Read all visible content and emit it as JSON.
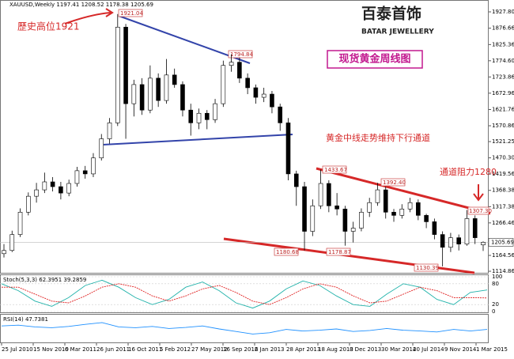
{
  "chart_data": {
    "type": "candlestick",
    "title": "XAUUSD,Weekly",
    "header_values": [
      1197.41,
      1208.52,
      1178.38,
      1205.69
    ],
    "ylim": [
      1110,
      1965
    ],
    "yticks": [
      {
        "value": 1927.8,
        "label": "1927.80"
      },
      1876.66,
      1825.36,
      {
        "value": 1774.6,
        "label": "1774.60"
      },
      1723.86,
      1672.96,
      1621.76,
      1570.86,
      1521.25,
      {
        "value": 1470.3,
        "label": "1470.30"
      },
      1419.56,
      1368.38,
      1317.38,
      1266.46,
      1164.56,
      1114.86
    ],
    "categories": [
      "25 Jul 2010",
      "15 Nov 2010",
      "6 Mar 2011",
      "26 Jun 2011",
      "16 Oct 2011",
      "5 Feb 2012",
      "27 May 2012",
      "16 Sep 2012",
      "6 Jan 2013",
      "28 Apr 2013",
      "18 Aug 2013",
      "8 Dec 2013",
      "30 Mar 2014",
      "20 Jul 2014",
      "9 Nov 2014",
      "1 Mar 2015"
    ],
    "ohlc": [
      [
        1170,
        1200,
        1158,
        1180
      ],
      [
        1180,
        1242,
        1175,
        1230
      ],
      [
        1230,
        1312,
        1222,
        1300
      ],
      [
        1300,
        1362,
        1290,
        1350
      ],
      [
        1350,
        1392,
        1330,
        1370
      ],
      [
        1370,
        1424,
        1360,
        1395
      ],
      [
        1395,
        1410,
        1365,
        1380
      ],
      [
        1380,
        1395,
        1340,
        1360
      ],
      [
        1360,
        1402,
        1350,
        1390
      ],
      [
        1390,
        1442,
        1380,
        1430
      ],
      [
        1430,
        1445,
        1405,
        1420
      ],
      [
        1420,
        1485,
        1410,
        1470
      ],
      [
        1470,
        1545,
        1462,
        1530
      ],
      [
        1530,
        1595,
        1515,
        1580
      ],
      [
        1580,
        1921,
        1570,
        1880
      ],
      [
        1880,
        1890,
        1530,
        1640
      ],
      [
        1640,
        1715,
        1600,
        1700
      ],
      [
        1700,
        1720,
        1605,
        1620
      ],
      [
        1620,
        1760,
        1610,
        1720
      ],
      [
        1720,
        1735,
        1630,
        1650
      ],
      [
        1650,
        1780,
        1640,
        1730
      ],
      [
        1730,
        1750,
        1690,
        1700
      ],
      [
        1700,
        1710,
        1600,
        1620
      ],
      [
        1620,
        1640,
        1540,
        1580
      ],
      [
        1580,
        1625,
        1560,
        1610
      ],
      [
        1610,
        1620,
        1560,
        1590
      ],
      [
        1590,
        1655,
        1580,
        1640
      ],
      [
        1640,
        1775,
        1630,
        1760
      ],
      [
        1760,
        1795,
        1740,
        1770
      ],
      [
        1770,
        1785,
        1705,
        1720
      ],
      [
        1720,
        1735,
        1670,
        1690
      ],
      [
        1690,
        1700,
        1640,
        1660
      ],
      [
        1660,
        1690,
        1645,
        1670
      ],
      [
        1670,
        1680,
        1610,
        1630
      ],
      [
        1630,
        1640,
        1555,
        1580
      ],
      [
        1580,
        1595,
        1400,
        1420
      ],
      [
        1420,
        1430,
        1320,
        1380
      ],
      [
        1380,
        1395,
        1180,
        1240
      ],
      [
        1240,
        1340,
        1225,
        1320
      ],
      [
        1320,
        1433,
        1310,
        1390
      ],
      [
        1390,
        1400,
        1300,
        1320
      ],
      [
        1320,
        1360,
        1290,
        1310
      ],
      [
        1310,
        1320,
        1195,
        1240
      ],
      [
        1240,
        1270,
        1205,
        1250
      ],
      [
        1250,
        1312,
        1240,
        1300
      ],
      [
        1300,
        1345,
        1285,
        1330
      ],
      [
        1330,
        1392,
        1320,
        1370
      ],
      [
        1370,
        1380,
        1280,
        1300
      ],
      [
        1300,
        1310,
        1270,
        1290
      ],
      [
        1290,
        1325,
        1280,
        1310
      ],
      [
        1310,
        1345,
        1300,
        1330
      ],
      [
        1330,
        1340,
        1275,
        1290
      ],
      [
        1290,
        1295,
        1250,
        1270
      ],
      [
        1270,
        1280,
        1215,
        1230
      ],
      [
        1230,
        1240,
        1130,
        1190
      ],
      [
        1190,
        1235,
        1175,
        1220
      ],
      [
        1220,
        1230,
        1180,
        1200
      ],
      [
        1200,
        1307,
        1195,
        1280
      ],
      [
        1280,
        1290,
        1200,
        1220
      ],
      [
        1197.41,
        1208.52,
        1178.38,
        1205.69
      ]
    ],
    "stoch": {
      "label": "Stoch(5,3,3) 62.3951 39.2859",
      "ylim": [
        0,
        100
      ],
      "yticks": [
        0,
        20,
        80,
        100
      ],
      "series": [
        {
          "color": "#20b2aa",
          "values": [
            80,
            60,
            30,
            15,
            40,
            75,
            90,
            70,
            40,
            20,
            35,
            70,
            85,
            60,
            25,
            10,
            30,
            65,
            88,
            75,
            45,
            20,
            15,
            50,
            80,
            70,
            35,
            20,
            55,
            62
          ]
        },
        {
          "color": "#e02020",
          "values": [
            70,
            70,
            50,
            30,
            25,
            45,
            70,
            80,
            70,
            45,
            30,
            45,
            65,
            75,
            55,
            30,
            20,
            40,
            65,
            80,
            70,
            45,
            25,
            30,
            50,
            70,
            60,
            40,
            40,
            39
          ]
        }
      ]
    },
    "rsi": {
      "label": "RSI(14) 47.7381",
      "ylim": [
        0,
        100
      ],
      "color": "#1e90ff",
      "values": [
        62,
        65,
        58,
        55,
        60,
        68,
        75,
        58,
        55,
        60,
        52,
        56,
        62,
        50,
        40,
        30,
        35,
        48,
        42,
        45,
        50,
        40,
        44,
        52,
        45,
        42,
        38,
        48,
        42,
        48
      ]
    },
    "annotations": {
      "high_note": "歷史高位1921",
      "logo": "百泰首饰",
      "logo_en": "BATAR JEWELLERY",
      "chart_name": "现货黄金周线图",
      "trend_note": "黄金中线走势维持下行通道",
      "resistance_note": "通道阻力1280",
      "price_labels": [
        1921.04,
        1794.84,
        1433.67,
        {
          "value": 1392.4,
          "label": "1392.40"
        },
        {
          "value": 1307.3,
          "label": "1307.30"
        },
        1180.68,
        1178.87,
        1130.39
      ]
    }
  }
}
